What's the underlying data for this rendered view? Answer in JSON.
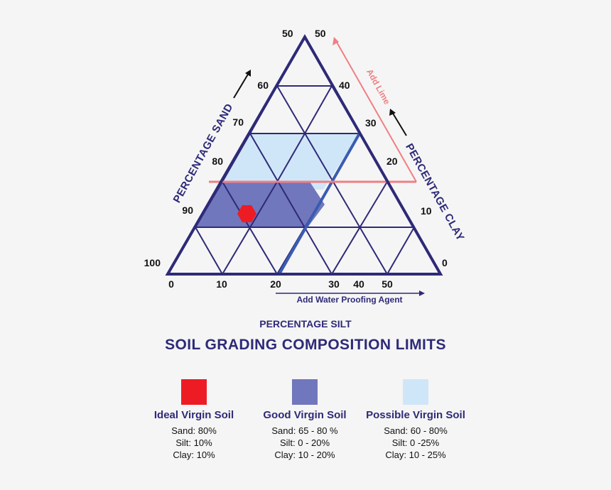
{
  "ticks": {
    "sand": [
      "50",
      "60",
      "70",
      "80",
      "90",
      "100"
    ],
    "clay": [
      "50",
      "40",
      "30",
      "20",
      "10",
      "0"
    ],
    "silt": [
      "0",
      "10",
      "20",
      "30",
      "40",
      "50"
    ]
  },
  "axis_labels": {
    "sand": "PERCENTAGE SAND",
    "clay": "PERCENTAGE CLAY",
    "silt": "PERCENTAGE SILT"
  },
  "annotations": {
    "lime": "Add Lime",
    "water": "Add Water Proofing Agent"
  },
  "title": "SOIL GRADING COMPOSITION LIMITS",
  "colors": {
    "outline": "#2e2a78",
    "ideal": "#ed1c24",
    "good": "#7077bc",
    "possible": "#cfe6f8",
    "lime": "#ef7f84"
  },
  "legend": [
    {
      "name": "Ideal Virgin Soil",
      "color": "#ed1c24",
      "sand": "Sand: 80%",
      "silt": "Silt: 10%",
      "clay": "Clay: 10%"
    },
    {
      "name": "Good Virgin Soil",
      "color": "#7077bc",
      "sand": "Sand: 65 - 80 %",
      "silt": "Silt: 0 - 20%",
      "clay": "Clay: 10 - 20%"
    },
    {
      "name": "Possible Virgin Soil",
      "color": "#cfe6f8",
      "sand": "Sand: 60 - 80%",
      "silt": "Silt: 0 -25%",
      "clay": "Clay: 10 - 25%"
    }
  ]
}
